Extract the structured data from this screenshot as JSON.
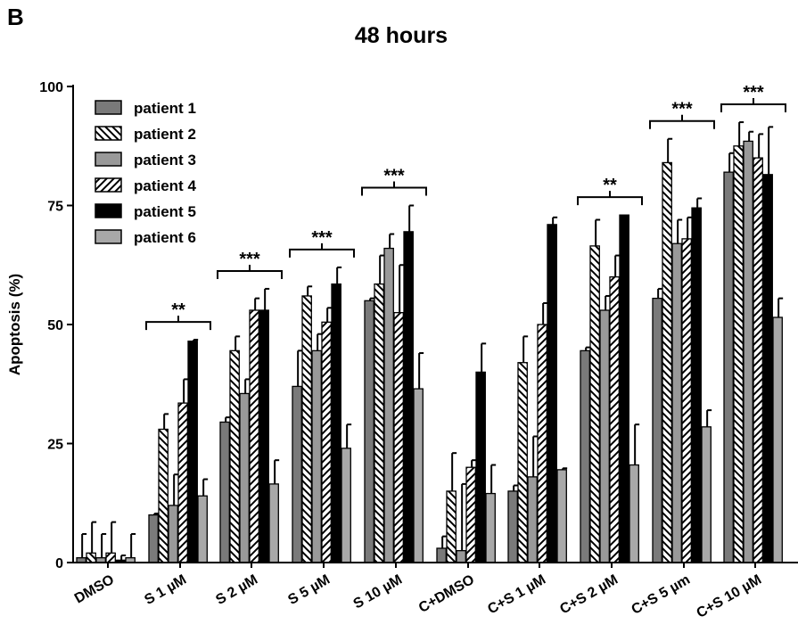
{
  "panel_label": "B",
  "chart_data": {
    "type": "bar",
    "title": "48 hours",
    "xlabel": "",
    "ylabel": "Apoptosis (%)",
    "ylim": [
      0,
      100
    ],
    "yticks": [
      0,
      25,
      50,
      75,
      100
    ],
    "grid": false,
    "legend_position": "top-left",
    "categories": [
      "DMSO",
      "S 1 µM",
      "S 2 µM",
      "S 5 µM",
      "S 10 µM",
      "C+DMSO",
      "C+S 1 µM",
      "C+S 2 µM",
      "C+S 5 µm",
      "C+S 10 µM"
    ],
    "series": [
      {
        "name": "patient 1",
        "pattern": "solid",
        "color": "#7a7a7a",
        "values": [
          1,
          10,
          29.5,
          37,
          55,
          3,
          15,
          44.5,
          55.5,
          82
        ],
        "errors": [
          5,
          0.3,
          1,
          7.5,
          0.5,
          2.5,
          1.2,
          0.7,
          2,
          4
        ]
      },
      {
        "name": "patient 2",
        "pattern": "hatch-down",
        "color": "#000000",
        "values": [
          2,
          28,
          44.5,
          56,
          58.5,
          15,
          42,
          66.5,
          84,
          87.5
        ],
        "errors": [
          6.5,
          3.2,
          3,
          2,
          6,
          8,
          5.5,
          5.5,
          5,
          5
        ]
      },
      {
        "name": "patient 3",
        "pattern": "solid",
        "color": "#999999",
        "values": [
          1,
          12,
          35.5,
          44.5,
          66,
          2.5,
          18,
          53,
          67,
          88.5
        ],
        "errors": [
          5,
          6.5,
          3,
          3.5,
          3,
          14,
          8.5,
          3,
          5,
          2
        ]
      },
      {
        "name": "patient 4",
        "pattern": "hatch-up",
        "color": "#000000",
        "values": [
          2,
          33.5,
          53,
          50.5,
          52.5,
          20,
          50,
          60,
          68,
          85
        ],
        "errors": [
          6.5,
          5,
          2.5,
          3,
          10,
          1.5,
          4.5,
          4.5,
          4.5,
          5
        ]
      },
      {
        "name": "patient 5",
        "pattern": "solid",
        "color": "#000000",
        "values": [
          0.5,
          46.5,
          53,
          58.5,
          69.5,
          40,
          71,
          73,
          74.5,
          81.5
        ],
        "errors": [
          1,
          0.3,
          4.5,
          3.5,
          5.5,
          6,
          1.5,
          0,
          2,
          10
        ]
      },
      {
        "name": "patient 6",
        "pattern": "solid",
        "color": "#a8a8a8",
        "values": [
          1,
          14,
          16.5,
          24,
          36.5,
          14.5,
          19.5,
          20.5,
          28.5,
          51.5
        ],
        "errors": [
          5,
          3.5,
          5,
          5,
          7.5,
          6,
          0.3,
          8.5,
          3.5,
          4
        ]
      }
    ],
    "annotations": [
      {
        "category": "S 1 µM",
        "text": "**"
      },
      {
        "category": "S 2 µM",
        "text": "***"
      },
      {
        "category": "S 5 µM",
        "text": "***"
      },
      {
        "category": "S 10 µM",
        "text": "***"
      },
      {
        "category": "C+S 2 µM",
        "text": "**"
      },
      {
        "category": "C+S 5 µm",
        "text": "***"
      },
      {
        "category": "C+S 10 µM",
        "text": "***"
      }
    ]
  }
}
